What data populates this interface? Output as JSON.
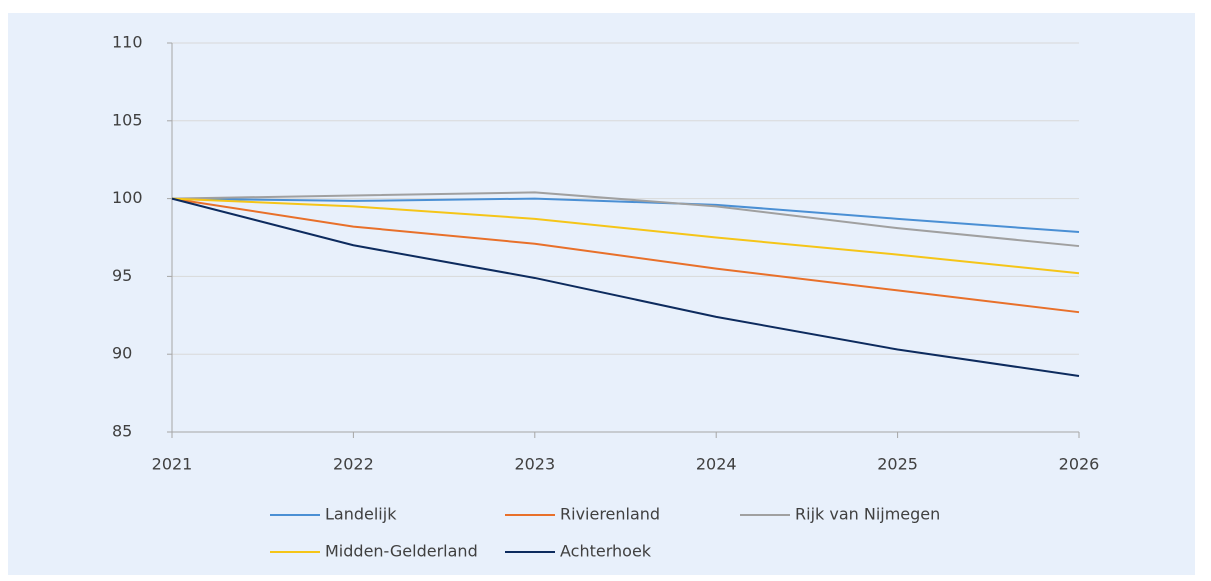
{
  "chart_data": {
    "type": "line",
    "x": [
      2021,
      2022,
      2023,
      2024,
      2025,
      2026
    ],
    "xlim": [
      2021,
      2026
    ],
    "xticks": [
      2021,
      2022,
      2023,
      2024,
      2025,
      2026
    ],
    "ylim": [
      85,
      110
    ],
    "yticks": [
      85,
      90,
      95,
      100,
      105,
      110
    ],
    "grid": true,
    "legend": "bottom",
    "series": [
      {
        "name": "Landelijk",
        "color": "#4a8fd4",
        "values": [
          100,
          99.85,
          100.0,
          99.6,
          98.7,
          97.85
        ]
      },
      {
        "name": "Rivierenland",
        "color": "#e8702a",
        "values": [
          100,
          98.2,
          97.1,
          95.5,
          94.1,
          92.7
        ]
      },
      {
        "name": "Rijk van Nijmegen",
        "color": "#a0a0a0",
        "values": [
          100,
          100.2,
          100.4,
          99.5,
          98.1,
          96.95
        ]
      },
      {
        "name": "Midden-Gelderland",
        "color": "#f5c518",
        "values": [
          100,
          99.5,
          98.7,
          97.5,
          96.4,
          95.2
        ]
      },
      {
        "name": "Achterhoek",
        "color": "#0d2b5e",
        "values": [
          100,
          97.0,
          94.9,
          92.4,
          90.3,
          88.6
        ]
      }
    ]
  }
}
